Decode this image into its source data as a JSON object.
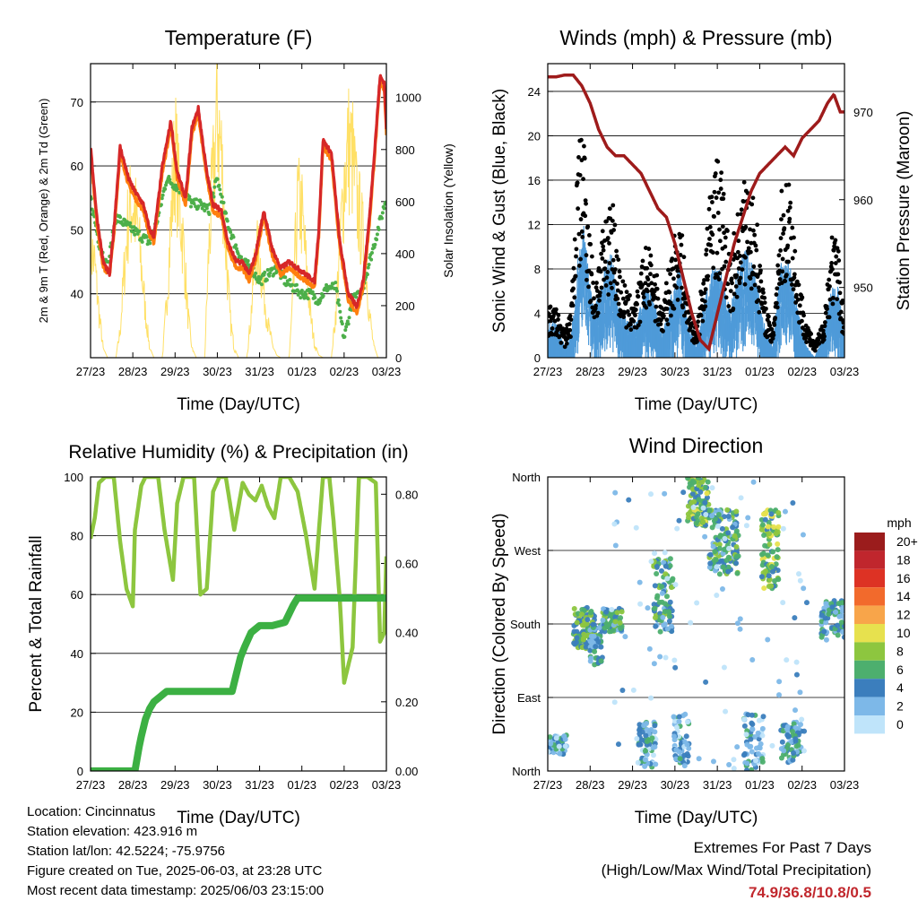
{
  "x_ticks": [
    "27/23",
    "28/23",
    "29/23",
    "30/23",
    "31/23",
    "01/23",
    "02/23",
    "03/23"
  ],
  "info": {
    "location": "Location: Cincinnatus",
    "elevation": "Station elevation: 423.916 m",
    "latlon": "Station lat/lon: 42.5224; -75.9756",
    "created": "Figure created on Tue, 2025-06-03, at 23:28 UTC",
    "recent": "Most recent data timestamp: 2025/06/03 23:15:00"
  },
  "extremes": {
    "title": "Extremes For Past 7 Days",
    "subtitle": "(High/Low/Max Wind/Total Precipitation)",
    "values": "74.9/36.8/10.8/0.5"
  },
  "colors": {
    "red": "#d62728",
    "orange": "#ff7f0e",
    "green": "#4daf4a",
    "yellow": "#ffe066",
    "maroon": "#9e1b1b",
    "blue": "#4f9bd9",
    "lightgreen": "#8dc63f",
    "darkgreen": "#3cb043"
  },
  "chart_data": [
    {
      "type": "line",
      "title": "Temperature (F)",
      "xlabel": "Time (Day/UTC)",
      "ylabel": "2m & 9m T (Red, Orange) & 2m Td (Green)",
      "ylabel_right": "Solar Insolation (Yellow)",
      "xlim": [
        0,
        7
      ],
      "ylim": [
        30,
        76
      ],
      "yticks": [
        "40",
        "50",
        "60",
        "70"
      ],
      "ylim_right": [
        0,
        1130
      ],
      "yticks_right": [
        "0",
        "200",
        "400",
        "600",
        "800",
        "1000"
      ],
      "grid": "horizontal",
      "series": [
        {
          "key": "temp2m",
          "x": [
            0,
            0.15,
            0.3,
            0.45,
            0.55,
            0.7,
            0.9,
            1.05,
            1.25,
            1.4,
            1.5,
            1.7,
            1.9,
            2.05,
            2.25,
            2.4,
            2.55,
            2.75,
            2.9,
            3.1,
            3.25,
            3.45,
            3.6,
            3.75,
            3.9,
            4.1,
            4.3,
            4.5,
            4.7,
            4.9,
            5.1,
            5.3,
            5.4,
            5.5,
            5.7,
            5.9,
            6.1,
            6.3,
            6.45,
            6.6,
            6.75,
            6.85,
            6.95,
            7
          ],
          "y": [
            63,
            52,
            45,
            43,
            50,
            63,
            58,
            56,
            54,
            50,
            49,
            60,
            67,
            59,
            55,
            66,
            69,
            59,
            54,
            53,
            48,
            45,
            45,
            43,
            46,
            53,
            47,
            44,
            45,
            44,
            43,
            42,
            50,
            64,
            62,
            48,
            40,
            38,
            42,
            52,
            65,
            74,
            73,
            66
          ]
        },
        {
          "key": "temp9m",
          "x": [
            0,
            0.15,
            0.3,
            0.45,
            0.55,
            0.7,
            0.9,
            1.05,
            1.25,
            1.4,
            1.5,
            1.7,
            1.9,
            2.05,
            2.25,
            2.4,
            2.55,
            2.75,
            2.9,
            3.1,
            3.25,
            3.45,
            3.6,
            3.75,
            3.9,
            4.1,
            4.3,
            4.5,
            4.7,
            4.9,
            5.1,
            5.3,
            5.4,
            5.5,
            5.7,
            5.9,
            6.1,
            6.3,
            6.45,
            6.6,
            6.75,
            6.85,
            6.95,
            7
          ],
          "y": [
            62,
            51,
            44,
            43,
            49,
            62,
            57,
            55,
            53,
            49,
            48,
            59,
            66,
            58,
            54,
            65,
            68,
            58,
            53,
            52,
            47,
            44,
            44,
            42,
            45,
            52,
            46,
            43,
            44,
            43,
            42,
            41,
            49,
            63,
            61,
            47,
            39,
            37,
            41,
            51,
            64,
            73,
            72,
            65
          ]
        },
        {
          "key": "dew2m",
          "x": [
            0,
            0.2,
            0.4,
            0.6,
            0.8,
            1.0,
            1.2,
            1.4,
            1.6,
            1.8,
            2.0,
            2.2,
            2.4,
            2.6,
            2.8,
            3.0,
            3.2,
            3.4,
            3.6,
            3.8,
            4.0,
            4.2,
            4.4,
            4.6,
            4.8,
            5.0,
            5.2,
            5.4,
            5.6,
            5.8,
            6.0,
            6.2,
            6.4,
            6.6,
            6.8,
            7
          ],
          "y": [
            55,
            48,
            44,
            52,
            51,
            50,
            49,
            48,
            52,
            58,
            57,
            56,
            54,
            54,
            53,
            58,
            52,
            48,
            45,
            44,
            42,
            43,
            44,
            42,
            41,
            40,
            40,
            39,
            41,
            41,
            33,
            39,
            40,
            45,
            50,
            55
          ]
        },
        {
          "key": "solar",
          "axis": "right",
          "x": [
            0,
            0.1,
            0.2,
            0.3,
            0.4,
            0.5,
            0.6,
            0.7,
            0.8,
            0.9,
            1.0,
            1.1,
            1.2,
            1.3,
            1.4,
            1.5,
            1.6,
            1.7,
            1.8,
            1.9,
            2.0,
            2.1,
            2.2,
            2.3,
            2.4,
            2.5,
            2.6,
            2.7,
            2.8,
            2.9,
            3.0,
            3.1,
            3.2,
            3.3,
            3.4,
            3.5,
            3.6,
            3.7,
            3.8,
            3.9,
            4.0,
            4.1,
            4.2,
            4.3,
            4.4,
            4.5,
            4.6,
            4.7,
            4.8,
            4.9,
            5.0,
            5.1,
            5.2,
            5.3,
            5.4,
            5.5,
            5.6,
            5.7,
            5.8,
            5.9,
            6.0,
            6.1,
            6.2,
            6.3,
            6.4,
            6.5,
            6.6,
            6.7,
            6.8,
            6.9,
            7.0
          ],
          "y": [
            500,
            420,
            200,
            40,
            0,
            0,
            0,
            120,
            400,
            650,
            700,
            600,
            420,
            200,
            40,
            0,
            0,
            0,
            250,
            600,
            950,
            700,
            500,
            200,
            40,
            0,
            0,
            0,
            500,
            800,
            1100,
            900,
            500,
            180,
            40,
            0,
            0,
            0,
            200,
            480,
            450,
            300,
            150,
            60,
            10,
            0,
            0,
            0,
            300,
            700,
            650,
            420,
            200,
            60,
            10,
            0,
            0,
            0,
            200,
            500,
            800,
            950,
            900,
            700,
            600,
            450,
            200,
            50,
            0,
            0,
            0
          ]
        }
      ]
    },
    {
      "type": "scatter",
      "title": "Winds (mph) & Pressure (mb)",
      "xlabel": "Time (Day/UTC)",
      "ylabel": "Sonic Wind & Gust (Blue, Black)",
      "ylabel_right": "Station Pressure (Maroon)",
      "xlim": [
        0,
        7
      ],
      "ylim": [
        0,
        26.5
      ],
      "yticks": [
        "0",
        "4",
        "8",
        "12",
        "16",
        "20",
        "24"
      ],
      "ylim_right": [
        942,
        975.5
      ],
      "yticks_right": [
        "950",
        "960",
        "970"
      ],
      "grid": "horizontal",
      "series": [
        {
          "key": "wind_env",
          "x": [
            0,
            0.2,
            0.4,
            0.55,
            0.7,
            0.85,
            1.0,
            1.1,
            1.3,
            1.5,
            1.7,
            1.9,
            2.1,
            2.3,
            2.5,
            2.7,
            2.9,
            3.1,
            3.3,
            3.5,
            3.7,
            3.9,
            4.1,
            4.3,
            4.5,
            4.7,
            4.9,
            5.1,
            5.3,
            5.5,
            5.7,
            5.9,
            6.1,
            6.3,
            6.5,
            6.7,
            6.85,
            7
          ],
          "y": [
            3,
            3,
            1,
            2,
            8,
            11,
            6,
            4,
            7,
            9,
            4,
            3,
            3,
            6,
            5,
            2,
            5,
            8,
            3,
            1,
            5,
            8,
            7,
            4,
            8,
            9,
            7,
            3,
            1,
            8,
            8,
            4,
            1,
            0,
            2,
            6,
            6,
            2
          ]
        },
        {
          "key": "gust_env",
          "x": [
            0,
            0.2,
            0.4,
            0.55,
            0.7,
            0.85,
            1.0,
            1.1,
            1.3,
            1.5,
            1.7,
            1.9,
            2.1,
            2.3,
            2.5,
            2.7,
            2.9,
            3.1,
            3.3,
            3.5,
            3.7,
            3.9,
            4.1,
            4.3,
            4.5,
            4.7,
            4.9,
            5.1,
            5.3,
            5.5,
            5.7,
            5.9,
            6.1,
            6.3,
            6.5,
            6.7,
            6.85,
            7
          ],
          "y": [
            4,
            4,
            2,
            4,
            16,
            19,
            10,
            6,
            10,
            14,
            7,
            5,
            5,
            9,
            8,
            4,
            8,
            12,
            5,
            2,
            8,
            16,
            15,
            8,
            12,
            15,
            12,
            5,
            2,
            13,
            15,
            7,
            3,
            1,
            3,
            10,
            9,
            3
          ]
        },
        {
          "key": "pressure",
          "axis": "right",
          "x": [
            0,
            0.2,
            0.4,
            0.6,
            0.8,
            1.0,
            1.2,
            1.4,
            1.6,
            1.8,
            2.0,
            2.2,
            2.4,
            2.6,
            2.8,
            3.0,
            3.2,
            3.4,
            3.6,
            3.8,
            4.0,
            4.2,
            4.4,
            4.6,
            4.8,
            5.0,
            5.2,
            5.4,
            5.6,
            5.8,
            6.0,
            6.2,
            6.4,
            6.6,
            6.75,
            6.9,
            7
          ],
          "y": [
            974,
            974,
            974.2,
            974.2,
            973,
            971,
            968,
            966,
            965,
            965,
            964,
            963,
            961,
            959,
            958,
            955,
            951,
            947,
            944,
            943,
            947,
            951,
            955,
            958,
            961,
            963,
            964,
            965,
            966,
            965,
            967,
            968,
            969,
            971,
            972,
            970,
            970
          ]
        }
      ]
    },
    {
      "type": "line",
      "title": "Relative Humidity (%) & Precipitation (in)",
      "xlabel": "Time (Day/UTC)",
      "ylabel": "Percent & Total Rainfall",
      "xlim": [
        0,
        7
      ],
      "ylim": [
        0,
        100
      ],
      "yticks": [
        "0",
        "20",
        "40",
        "60",
        "80",
        "100"
      ],
      "ylim_right": [
        0,
        0.85
      ],
      "yticks_right": [
        "0.00",
        "0.20",
        "0.40",
        "0.60",
        "0.80"
      ],
      "grid": "horizontal",
      "series": [
        {
          "key": "rh",
          "x": [
            0,
            0.1,
            0.2,
            0.35,
            0.55,
            0.7,
            0.85,
            1.0,
            1.05,
            1.2,
            1.3,
            1.45,
            1.6,
            1.75,
            1.95,
            2.05,
            2.2,
            2.45,
            2.6,
            2.75,
            2.9,
            3.05,
            3.2,
            3.4,
            3.6,
            3.75,
            3.9,
            4.05,
            4.2,
            4.35,
            4.5,
            4.7,
            4.9,
            5.1,
            5.3,
            5.5,
            5.65,
            5.75,
            5.9,
            6.0,
            6.2,
            6.35,
            6.55,
            6.75,
            6.85,
            6.95,
            7
          ],
          "y": [
            79,
            86,
            98,
            100,
            100,
            78,
            62,
            56,
            82,
            97,
            100,
            100,
            100,
            82,
            65,
            91,
            100,
            100,
            60,
            62,
            95,
            100,
            100,
            82,
            98,
            94,
            92,
            97,
            90,
            86,
            100,
            100,
            95,
            80,
            62,
            100,
            100,
            85,
            58,
            30,
            42,
            100,
            100,
            98,
            44,
            47,
            73
          ]
        },
        {
          "key": "precip",
          "axis": "right",
          "x": [
            0,
            0.6,
            1.05,
            1.15,
            1.2,
            1.3,
            1.4,
            1.5,
            1.6,
            1.8,
            2.0,
            2.5,
            3.0,
            3.35,
            3.45,
            3.55,
            3.65,
            3.8,
            4.0,
            4.1,
            4.3,
            4.6,
            4.8,
            4.9,
            5.1,
            5.3,
            6,
            7
          ],
          "y": [
            0,
            0,
            0,
            0.07,
            0.1,
            0.15,
            0.18,
            0.2,
            0.21,
            0.23,
            0.23,
            0.23,
            0.23,
            0.23,
            0.28,
            0.33,
            0.36,
            0.4,
            0.42,
            0.42,
            0.42,
            0.43,
            0.48,
            0.5,
            0.5,
            0.5,
            0.5,
            0.5
          ]
        }
      ]
    },
    {
      "type": "scatter",
      "title": "Wind Direction",
      "xlabel": "Time (Day/UTC)",
      "ylabel": "Direction (Colored By Speed)",
      "xlim": [
        0,
        7
      ],
      "ylim": [
        0,
        360
      ],
      "yticks": [
        "North",
        "East",
        "South",
        "West",
        "North"
      ],
      "grid": "horizontal",
      "colorbar": {
        "title": "mph",
        "labels": [
          "20+",
          "18",
          "16",
          "14",
          "12",
          "10",
          "8",
          "6",
          "4",
          "2",
          "0"
        ],
        "colors": [
          "#9b1c1c",
          "#c0262d",
          "#dd3224",
          "#f26a2c",
          "#f8a54a",
          "#e7e14e",
          "#8dc63f",
          "#4daf6e",
          "#3b7ebd",
          "#7db8e8",
          "#bfe4fa"
        ]
      },
      "clusters": [
        {
          "x": [
            0.0,
            0.45
          ],
          "dir": [
            20,
            45
          ],
          "speed": 3,
          "n": 60
        },
        {
          "x": [
            0.6,
            1.1
          ],
          "dir": [
            150,
            200
          ],
          "speed": 6,
          "n": 110
        },
        {
          "x": [
            1.0,
            1.3
          ],
          "dir": [
            130,
            180
          ],
          "speed": 4,
          "n": 60
        },
        {
          "x": [
            1.3,
            1.75
          ],
          "dir": [
            170,
            200
          ],
          "speed": 5,
          "n": 70
        },
        {
          "x": [
            2.1,
            2.55
          ],
          "dir": [
            5,
            60
          ],
          "speed": 3,
          "n": 70
        },
        {
          "x": [
            2.5,
            2.95
          ],
          "dir": [
            170,
            260
          ],
          "speed": 5,
          "n": 90
        },
        {
          "x": [
            2.95,
            3.35
          ],
          "dir": [
            10,
            70
          ],
          "speed": 3,
          "n": 60
        },
        {
          "x": [
            3.3,
            3.8
          ],
          "dir": [
            300,
            360
          ],
          "speed": 7,
          "n": 110
        },
        {
          "x": [
            3.8,
            4.5
          ],
          "dir": [
            240,
            320
          ],
          "speed": 5,
          "n": 150
        },
        {
          "x": [
            4.6,
            5.1
          ],
          "dir": [
            0,
            70
          ],
          "speed": 3,
          "n": 60
        },
        {
          "x": [
            5.05,
            5.45
          ],
          "dir": [
            220,
            320
          ],
          "speed": 7,
          "n": 100
        },
        {
          "x": [
            5.5,
            6.0
          ],
          "dir": [
            10,
            60
          ],
          "speed": 4,
          "n": 70
        },
        {
          "x": [
            6.45,
            7.0
          ],
          "dir": [
            160,
            210
          ],
          "speed": 4,
          "n": 80
        },
        {
          "x": [
            1.5,
            6.2
          ],
          "dir": [
            0,
            360
          ],
          "speed": 1,
          "n": 90
        }
      ]
    }
  ]
}
